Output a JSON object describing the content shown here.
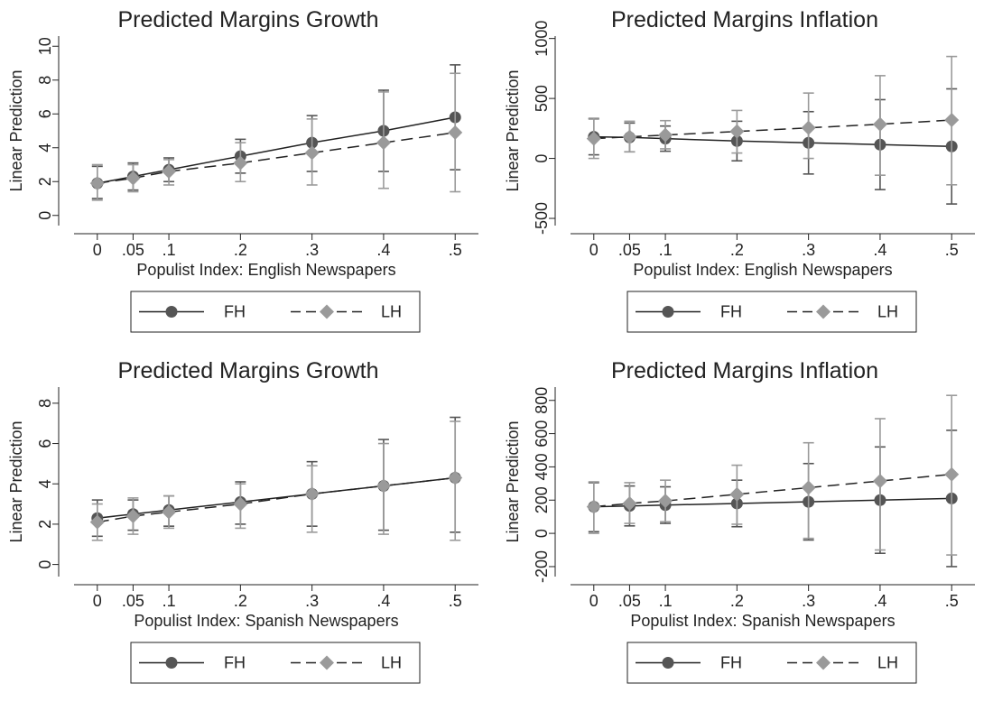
{
  "colors": {
    "fh": "#555555",
    "lh": "#9a9a9a",
    "axis": "#222222"
  },
  "legend": {
    "fh_label": "FH",
    "lh_label": "LH"
  },
  "chart_data": [
    {
      "type": "line",
      "title": "Predicted Margins Growth",
      "xlabel": "Populist Index: English Newspapers",
      "ylabel": "Linear Prediction",
      "x": [
        0,
        0.05,
        0.1,
        0.2,
        0.3,
        0.4,
        0.5
      ],
      "x_tick_labels": [
        "0",
        ".05",
        ".1",
        ".2",
        ".3",
        ".4",
        ".5"
      ],
      "ylim": [
        -0.6,
        10.6
      ],
      "y_ticks": [
        0,
        2,
        4,
        6,
        8,
        10
      ],
      "y_tick_labels": [
        "0",
        "2",
        "4",
        "6",
        "8",
        "10"
      ],
      "legend_position": "bottom",
      "series": [
        {
          "name": "FH",
          "style": "solid-circle",
          "values": [
            1.9,
            2.3,
            2.7,
            3.5,
            4.3,
            5.0,
            5.8
          ],
          "ci_low": [
            1.0,
            1.5,
            2.0,
            2.5,
            2.6,
            2.6,
            2.7
          ],
          "ci_high": [
            2.9,
            3.1,
            3.4,
            4.5,
            5.9,
            7.4,
            8.9
          ]
        },
        {
          "name": "LH",
          "style": "dashed-diamond",
          "values": [
            1.9,
            2.2,
            2.6,
            3.1,
            3.7,
            4.3,
            4.9
          ],
          "ci_low": [
            0.9,
            1.4,
            1.8,
            2.0,
            1.8,
            1.6,
            1.4
          ],
          "ci_high": [
            3.0,
            3.0,
            3.3,
            4.3,
            5.7,
            7.3,
            8.4
          ]
        }
      ]
    },
    {
      "type": "line",
      "title": "Predicted Margins Inflation",
      "xlabel": "Populist Index: English Newspapers",
      "ylabel": "Linear Prediction",
      "x": [
        0,
        0.05,
        0.1,
        0.2,
        0.3,
        0.4,
        0.5
      ],
      "x_tick_labels": [
        "0",
        ".05",
        ".1",
        ".2",
        ".3",
        ".4",
        ".5"
      ],
      "ylim": [
        -560,
        1020
      ],
      "y_ticks": [
        -500,
        0,
        500,
        1000
      ],
      "y_tick_labels": [
        "-500",
        "0",
        "500",
        "1000"
      ],
      "legend_position": "bottom",
      "series": [
        {
          "name": "FH",
          "style": "solid-circle",
          "values": [
            180,
            175,
            165,
            145,
            130,
            115,
            100
          ],
          "ci_low": [
            30,
            55,
            60,
            -20,
            -130,
            -260,
            -380
          ],
          "ci_high": [
            330,
            295,
            270,
            310,
            390,
            490,
            580
          ]
        },
        {
          "name": "LH",
          "style": "dashed-diamond",
          "values": [
            165,
            180,
            195,
            225,
            255,
            285,
            320
          ],
          "ci_low": [
            0,
            55,
            80,
            45,
            0,
            -140,
            -220
          ],
          "ci_high": [
            335,
            310,
            315,
            400,
            545,
            690,
            850
          ]
        }
      ]
    },
    {
      "type": "line",
      "title": "Predicted Margins Growth",
      "xlabel": "Populist Index: Spanish Newspapers",
      "ylabel": "Linear Prediction",
      "x": [
        0,
        0.05,
        0.1,
        0.2,
        0.3,
        0.4,
        0.5
      ],
      "x_tick_labels": [
        "0",
        ".05",
        ".1",
        ".2",
        ".3",
        ".4",
        ".5"
      ],
      "ylim": [
        -0.6,
        8.8
      ],
      "y_ticks": [
        0,
        2,
        4,
        6,
        8
      ],
      "y_tick_labels": [
        "0",
        "2",
        "4",
        "6",
        "8"
      ],
      "legend_position": "bottom",
      "series": [
        {
          "name": "FH",
          "style": "solid-circle",
          "values": [
            2.3,
            2.5,
            2.7,
            3.1,
            3.5,
            3.9,
            4.3
          ],
          "ci_low": [
            1.4,
            1.7,
            1.9,
            2.0,
            1.9,
            1.7,
            1.6
          ],
          "ci_high": [
            3.2,
            3.2,
            3.4,
            4.1,
            5.1,
            6.2,
            7.3
          ]
        },
        {
          "name": "LH",
          "style": "dashed-diamond",
          "values": [
            2.1,
            2.4,
            2.6,
            3.0,
            3.5,
            3.9,
            4.3
          ],
          "ci_low": [
            1.2,
            1.5,
            1.8,
            1.8,
            1.6,
            1.5,
            1.2
          ],
          "ci_high": [
            3.0,
            3.3,
            3.4,
            4.0,
            4.9,
            6.0,
            7.1
          ]
        }
      ]
    },
    {
      "type": "line",
      "title": "Predicted Margins Inflation",
      "xlabel": "Populist Index: Spanish Newspapers",
      "ylabel": "Linear Prediction",
      "x": [
        0,
        0.05,
        0.1,
        0.2,
        0.3,
        0.4,
        0.5
      ],
      "x_tick_labels": [
        "0",
        ".05",
        ".1",
        ".2",
        ".3",
        ".4",
        ".5"
      ],
      "ylim": [
        -260,
        880
      ],
      "y_ticks": [
        -200,
        0,
        200,
        400,
        600,
        800
      ],
      "y_tick_labels": [
        "-200",
        "0",
        "200",
        "400",
        "600",
        "800"
      ],
      "legend_position": "bottom",
      "series": [
        {
          "name": "FH",
          "style": "solid-circle",
          "values": [
            160,
            165,
            170,
            180,
            190,
            200,
            210
          ],
          "ci_low": [
            10,
            45,
            60,
            40,
            -40,
            -120,
            -200
          ],
          "ci_high": [
            305,
            285,
            280,
            320,
            420,
            520,
            620
          ]
        },
        {
          "name": "LH",
          "style": "dashed-diamond",
          "values": [
            160,
            180,
            195,
            235,
            275,
            315,
            355
          ],
          "ci_low": [
            0,
            60,
            70,
            55,
            -30,
            -100,
            -130
          ],
          "ci_high": [
            310,
            305,
            320,
            410,
            545,
            690,
            830
          ]
        }
      ]
    }
  ]
}
